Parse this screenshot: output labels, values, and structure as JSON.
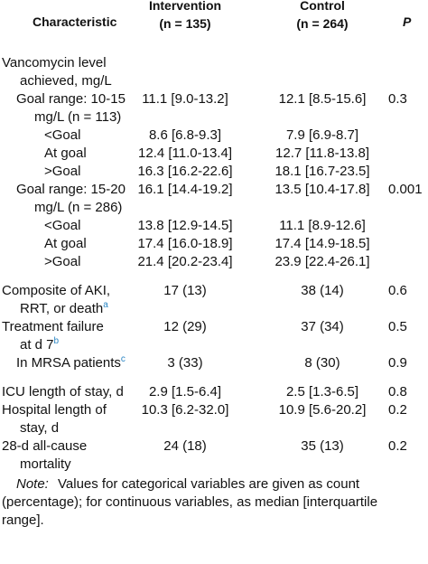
{
  "header": {
    "characteristic": "Characteristic",
    "intervention": [
      "Intervention",
      "(n = 135)"
    ],
    "control": [
      "Control",
      "(n = 264)"
    ],
    "p": "P"
  },
  "sections": [
    [
      {
        "label": [
          "Vancomycin level",
          "achieved, mg/L"
        ],
        "rows": [
          {
            "label": [
              "Goal range: 10-15",
              "mg/L (n = 113)"
            ],
            "intervention": "11.1 [9.0-13.2]",
            "control": "12.1 [8.5-15.6]",
            "p": "0.3",
            "rows": [
              {
                "label": [
                  "<Goal"
                ],
                "intervention": "8.6 [6.8-9.3]",
                "control": "7.9 [6.9-8.7]"
              },
              {
                "label": [
                  "At goal"
                ],
                "intervention": "12.4 [11.0-13.4]",
                "control": "12.7 [11.8-13.8]"
              },
              {
                "label": [
                  ">Goal"
                ],
                "intervention": "16.3 [16.2-22.6]",
                "control": "18.1 [16.7-23.5]"
              }
            ]
          },
          {
            "label": [
              "Goal range: 15-20",
              "mg/L (n = 286)"
            ],
            "intervention": "16.1 [14.4-19.2]",
            "control": "13.5 [10.4-17.8]",
            "p": "0.001",
            "rows": [
              {
                "label": [
                  "<Goal"
                ],
                "intervention": "13.8 [12.9-14.5]",
                "control": "11.1 [8.9-12.6]"
              },
              {
                "label": [
                  "At goal"
                ],
                "intervention": "17.4 [16.0-18.9]",
                "control": "17.4 [14.9-18.5]"
              },
              {
                "label": [
                  ">Goal"
                ],
                "intervention": "21.4 [20.2-23.4]",
                "control": "23.9 [22.4-26.1]"
              }
            ]
          }
        ]
      }
    ],
    [
      {
        "label": [
          "Composite of AKI,",
          "RRT, or death"
        ],
        "mark": "a",
        "intervention": "17 (13)",
        "control": "38 (14)",
        "p": "0.6"
      },
      {
        "label": [
          "Treatment failure",
          "at d 7"
        ],
        "mark": "b",
        "intervention": "12 (29)",
        "control": "37 (34)",
        "p": "0.5",
        "rows": [
          {
            "label": [
              "In MRSA patients"
            ],
            "mark": "c",
            "intervention": "3 (33)",
            "control": "8 (30)",
            "p": "0.9"
          }
        ]
      }
    ],
    [
      {
        "label": [
          "ICU length of stay, d"
        ],
        "intervention": "2.9 [1.5-6.4]",
        "control": "2.5 [1.3-6.5]",
        "p": "0.8"
      },
      {
        "label": [
          "Hospital length of",
          "stay, d"
        ],
        "intervention": "10.3 [6.2-32.0]",
        "control": "10.9 [5.6-20.2]",
        "p": "0.2"
      },
      {
        "label": [
          "28-d all-cause",
          "mortality"
        ],
        "intervention": "24 (18)",
        "control": "35 (13)",
        "p": "0.2"
      }
    ]
  ],
  "note": {
    "lead": "Note:",
    "lines": [
      "Values for categorical variables are given as count",
      "(percentage); for continuous variables, as median [interquartile",
      "range]."
    ]
  }
}
